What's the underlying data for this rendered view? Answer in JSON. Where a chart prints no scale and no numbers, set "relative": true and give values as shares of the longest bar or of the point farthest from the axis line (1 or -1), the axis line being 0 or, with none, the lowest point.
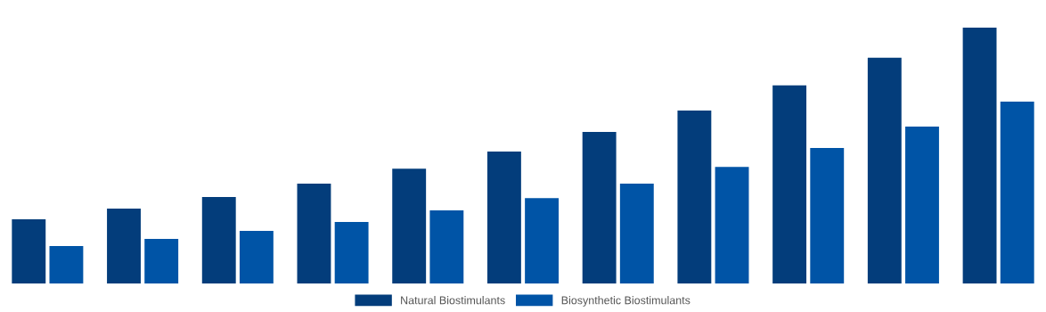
{
  "chart_data": {
    "type": "bar",
    "relative": true,
    "categories": [
      null,
      null,
      null,
      null,
      null,
      null,
      null,
      null,
      null,
      null,
      null
    ],
    "series": [
      {
        "name": "Natural Biostimulants",
        "color": "#033d7b",
        "values": [
          0.251,
          0.293,
          0.338,
          0.39,
          0.449,
          0.516,
          0.592,
          0.676,
          0.774,
          0.882,
          1
        ]
      },
      {
        "name": "Biosynthetic Biostimulants",
        "color": "#0054a6",
        "values": [
          0.146,
          0.174,
          0.206,
          0.24,
          0.286,
          0.334,
          0.39,
          0.456,
          0.53,
          0.613,
          0.711
        ]
      }
    ],
    "legend": "bottom",
    "grid": false
  }
}
